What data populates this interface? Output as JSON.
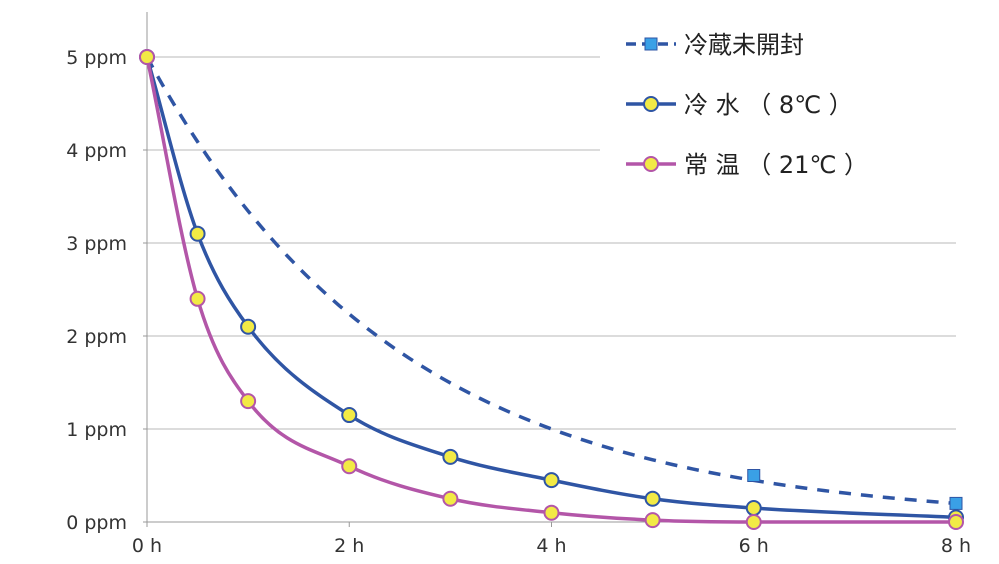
{
  "chart_data": {
    "type": "line",
    "title": "",
    "xlabel": "",
    "ylabel": "",
    "x_ticks": [
      "0 h",
      "2 h",
      "4 h",
      "6 h",
      "8 h"
    ],
    "x_tick_values": [
      0,
      2,
      4,
      6,
      8
    ],
    "y_ticks": [
      "0 ppm",
      "1 ppm",
      "2 ppm",
      "3 ppm",
      "4 ppm",
      "5 ppm"
    ],
    "y_tick_values": [
      0,
      1,
      2,
      3,
      4,
      5
    ],
    "xlim": [
      0,
      8
    ],
    "ylim": [
      0,
      5
    ],
    "grid": "horizontal",
    "legend_position": "top-right",
    "series": [
      {
        "name": "冷蔵未開封",
        "color": "#2f55a4",
        "marker_color": "#3aa0e6",
        "marker": "square",
        "dash": "dashed",
        "x": [
          0,
          6,
          8
        ],
        "y": [
          5,
          0.5,
          0.2
        ]
      },
      {
        "name": "冷 水 （ 8℃ ）",
        "color": "#2f55a4",
        "marker_color": "#f2ea45",
        "marker": "circle",
        "dash": "solid",
        "x": [
          0,
          0.5,
          1,
          2,
          3,
          4,
          5,
          6,
          8
        ],
        "y": [
          5,
          3.1,
          2.1,
          1.15,
          0.7,
          0.45,
          0.25,
          0.15,
          0.05
        ]
      },
      {
        "name": "常 温 （ 21℃ ）",
        "color": "#b356a8",
        "marker_color": "#f2ea45",
        "marker": "circle",
        "dash": "solid",
        "x": [
          0,
          0.5,
          1,
          2,
          3,
          4,
          5,
          6,
          8
        ],
        "y": [
          5,
          2.4,
          1.3,
          0.6,
          0.25,
          0.1,
          0.02,
          0.0,
          0.0
        ]
      }
    ]
  }
}
